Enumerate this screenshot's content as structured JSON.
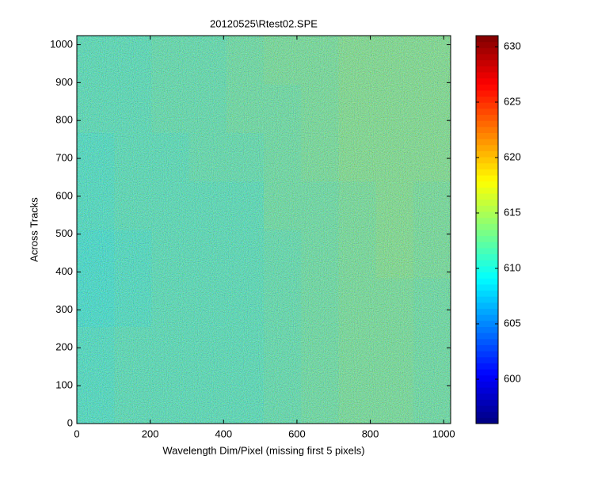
{
  "chart_data": {
    "type": "heatmap",
    "title": "20120525\\Rtest02.SPE",
    "xlabel": "Wavelength Dim/Pixel (missing first 5 pixels)",
    "ylabel": "Across Tracks",
    "xlim": [
      0,
      1019
    ],
    "ylim": [
      0,
      1024
    ],
    "xticks": [
      0,
      200,
      400,
      600,
      800,
      1000
    ],
    "yticks": [
      0,
      100,
      200,
      300,
      400,
      500,
      600,
      700,
      800,
      900,
      1000
    ],
    "colormap": "jet",
    "clim": [
      596,
      631
    ],
    "cticks": [
      600,
      605,
      610,
      615,
      620,
      625,
      630
    ],
    "z": [
      [
        610.5,
        611,
        611,
        611,
        611,
        611.5,
        612,
        612.5,
        612.5,
        612
      ],
      [
        610.5,
        611,
        611,
        611,
        611,
        611.5,
        612,
        612.5,
        612.5,
        612
      ],
      [
        610,
        610.5,
        611,
        611,
        611,
        611.5,
        612,
        612.5,
        612.5,
        612
      ],
      [
        610,
        610.5,
        611,
        611,
        611,
        611.5,
        612,
        612.5,
        613,
        612.5
      ],
      [
        610.5,
        611,
        611,
        611,
        611,
        612,
        612,
        612.5,
        613,
        612.5
      ],
      [
        610.5,
        611,
        611,
        611.5,
        611.5,
        612,
        612.5,
        613,
        613,
        613
      ],
      [
        611,
        611,
        611.5,
        611.5,
        612,
        612,
        612.5,
        613,
        613,
        613
      ],
      [
        611,
        611,
        611.5,
        611.5,
        612,
        612.5,
        612.5,
        613,
        613,
        613
      ]
    ]
  }
}
